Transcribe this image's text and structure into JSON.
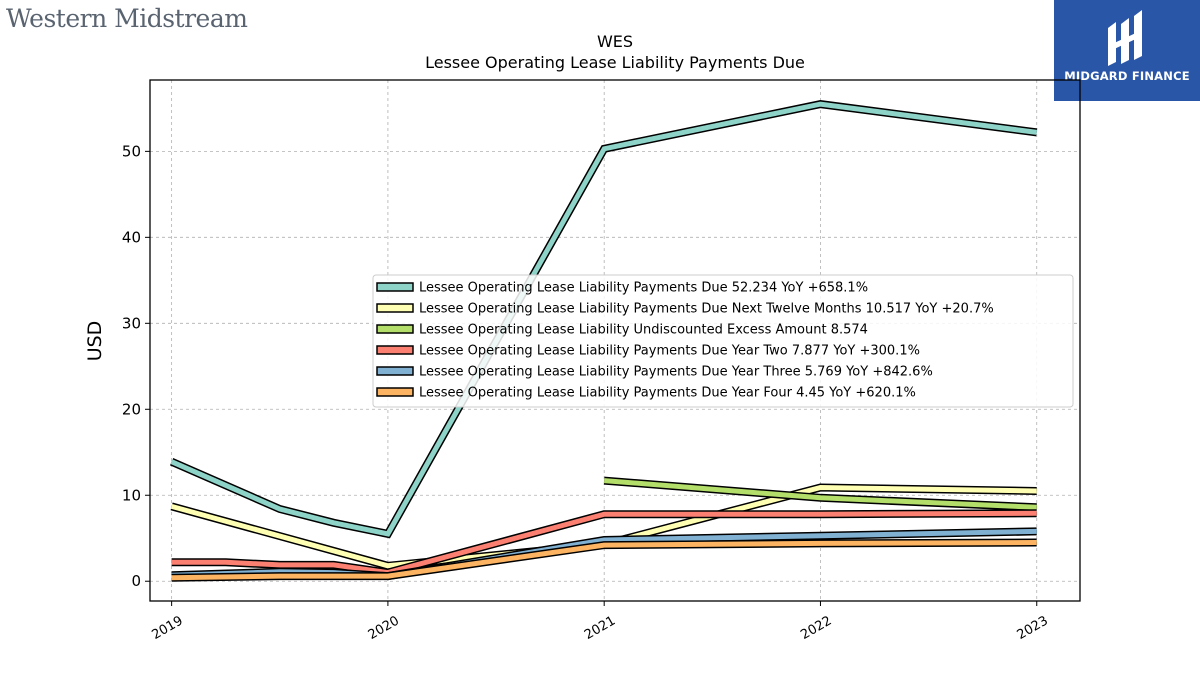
{
  "header": {
    "company_logo_text": "Western Midstream",
    "badge_text": "MIDGARD FINANCE"
  },
  "chart_data": {
    "type": "line",
    "title": "WES",
    "subtitle": "Lessee Operating Lease Liability Payments Due",
    "xlabel": "",
    "ylabel": "USD",
    "x_ticks": [
      "2019",
      "2020",
      "2021",
      "2022",
      "2023"
    ],
    "x_range": [
      2018.9,
      2023.2
    ],
    "ylim": [
      -2.3,
      58.3
    ],
    "y_ticks": [
      0,
      10,
      20,
      30,
      40,
      50
    ],
    "grid": true,
    "legend_position": "center-right",
    "series": [
      {
        "name": "Lessee Operating Lease Liability Payments Due",
        "legend": "Lessee Operating Lease Liability Payments Due  52.234 YoY +658.1%",
        "color": "#8dd3c7",
        "x": [
          2019,
          2019.5,
          2019.75,
          2020,
          2021,
          2022,
          2023
        ],
        "y": [
          13.9,
          8.4,
          6.8,
          5.5,
          50.3,
          55.5,
          52.2
        ]
      },
      {
        "name": "Lessee Operating Lease Liability Payments Due Next Twelve Months",
        "legend": "Lessee Operating Lease Liability Payments Due Next Twelve Months  10.517 YoY +20.7%",
        "color": "#ffffb3",
        "x": [
          2019,
          2020,
          2021,
          2022,
          2023
        ],
        "y": [
          8.7,
          1.8,
          4.3,
          10.9,
          10.5
        ]
      },
      {
        "name": "Lessee Operating Lease Liability Undiscounted Excess Amount",
        "legend": "Lessee Operating Lease Liability Undiscounted Excess Amount  8.574",
        "color": "#b3de69",
        "x": [
          2021,
          2022,
          2023
        ],
        "y": [
          11.7,
          9.7,
          8.6
        ]
      },
      {
        "name": "Lessee Operating Lease Liability Payments Due Year Two",
        "legend": "Lessee Operating Lease Liability Payments Due Year Two  7.877 YoY +300.1%",
        "color": "#fb8072",
        "x": [
          2019,
          2019.25,
          2019.5,
          2019.75,
          2020,
          2021,
          2022,
          2023
        ],
        "y": [
          2.2,
          2.2,
          1.9,
          1.9,
          1.0,
          7.8,
          7.8,
          7.9
        ]
      },
      {
        "name": "Lessee Operating Lease Liability Payments Due Year Three",
        "legend": "Lessee Operating Lease Liability Payments Due Year Three  5.769 YoY +842.6%",
        "color": "#80b1d3",
        "x": [
          2019,
          2019.5,
          2019.75,
          2020,
          2021,
          2022,
          2023
        ],
        "y": [
          0.7,
          1.1,
          1.0,
          0.6,
          4.8,
          5.3,
          5.8
        ]
      },
      {
        "name": "Lessee Operating Lease Liability Payments Due Year Four",
        "legend": "Lessee Operating Lease Liability Payments Due Year Four  4.45 YoY +620.1%",
        "color": "#fdb462",
        "x": [
          2019,
          2019.5,
          2020,
          2021,
          2022,
          2023
        ],
        "y": [
          0.4,
          0.6,
          0.6,
          4.2,
          4.4,
          4.5
        ]
      }
    ]
  }
}
